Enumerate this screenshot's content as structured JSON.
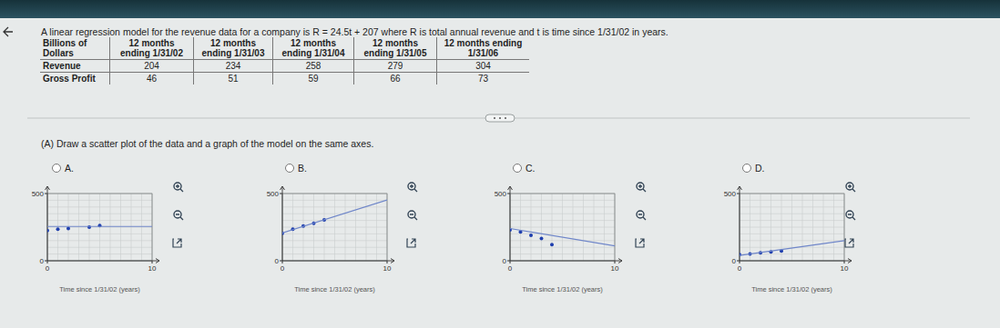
{
  "question": "A linear regression model for the revenue data for a company is R = 24.5t + 207 where R is total annual revenue and t is time since 1/31/02 in years.",
  "table": {
    "header": [
      "Billions of Dollars",
      "12 months ending 1/31/02",
      "12 months ending 1/31/03",
      "12 months ending 1/31/04",
      "12 months ending 1/31/05",
      "12 months ending 1/31/06"
    ],
    "rows": [
      [
        "Revenue",
        204,
        234,
        258,
        279,
        304
      ],
      [
        "Gross Profit",
        46,
        51,
        59,
        66,
        73
      ]
    ]
  },
  "part": "(A) Draw a scatter plot of the data and a graph of the model on the same axes.",
  "options": [
    "A.",
    "B.",
    "C.",
    "D."
  ],
  "chart_data": [
    {
      "type": "scatter",
      "x_label": "Time since 1/31/02 (years)",
      "xlim": [
        0,
        10
      ],
      "ylim": [
        0,
        500
      ],
      "xticks": [
        0,
        10
      ],
      "yticks": [
        0,
        500
      ],
      "grid": true,
      "series": [
        {
          "type": "scatter",
          "marker": "circle",
          "color": "#1f3fae",
          "x": [
            0,
            1,
            2,
            4,
            5
          ],
          "values": [
            225,
            235,
            240,
            250,
            262
          ]
        },
        {
          "type": "line",
          "line_style": "solid",
          "color": "#6f86c9",
          "x": [
            0,
            10
          ],
          "values": [
            255,
            255
          ]
        }
      ]
    },
    {
      "type": "scatter",
      "x_label": "Time since 1/31/02 (years)",
      "xlim": [
        0,
        10
      ],
      "ylim": [
        0,
        500
      ],
      "xticks": [
        0,
        10
      ],
      "yticks": [
        0,
        500
      ],
      "grid": true,
      "series": [
        {
          "type": "scatter",
          "marker": "circle",
          "color": "#1f3fae",
          "x": [
            0,
            1,
            2,
            3,
            4
          ],
          "values": [
            204,
            234,
            258,
            279,
            304
          ]
        },
        {
          "type": "line",
          "line_style": "solid",
          "color": "#6f86c9",
          "x": [
            0,
            10
          ],
          "values": [
            207,
            452
          ]
        }
      ]
    },
    {
      "type": "scatter",
      "x_label": "Time since 1/31/02 (years)",
      "xlim": [
        0,
        10
      ],
      "ylim": [
        0,
        500
      ],
      "xticks": [
        0,
        10
      ],
      "yticks": [
        0,
        500
      ],
      "grid": true,
      "series": [
        {
          "type": "scatter",
          "marker": "circle",
          "color": "#1f3fae",
          "x": [
            0,
            1,
            2,
            3,
            4
          ],
          "values": [
            230,
            215,
            190,
            165,
            120
          ]
        },
        {
          "type": "line",
          "line_style": "solid",
          "color": "#6f86c9",
          "x": [
            0,
            10
          ],
          "values": [
            240,
            110
          ]
        }
      ]
    },
    {
      "type": "scatter",
      "x_label": "Time since 1/31/02 (years)",
      "xlim": [
        0,
        10
      ],
      "ylim": [
        0,
        500
      ],
      "xticks": [
        0,
        10
      ],
      "yticks": [
        0,
        500
      ],
      "grid": true,
      "series": [
        {
          "type": "scatter",
          "marker": "circle",
          "color": "#1f3fae",
          "x": [
            0,
            1,
            2,
            3,
            4
          ],
          "values": [
            46,
            51,
            59,
            66,
            73
          ]
        },
        {
          "type": "line",
          "line_style": "solid",
          "color": "#6f86c9",
          "x": [
            0,
            10
          ],
          "values": [
            40,
            150
          ]
        }
      ]
    }
  ]
}
